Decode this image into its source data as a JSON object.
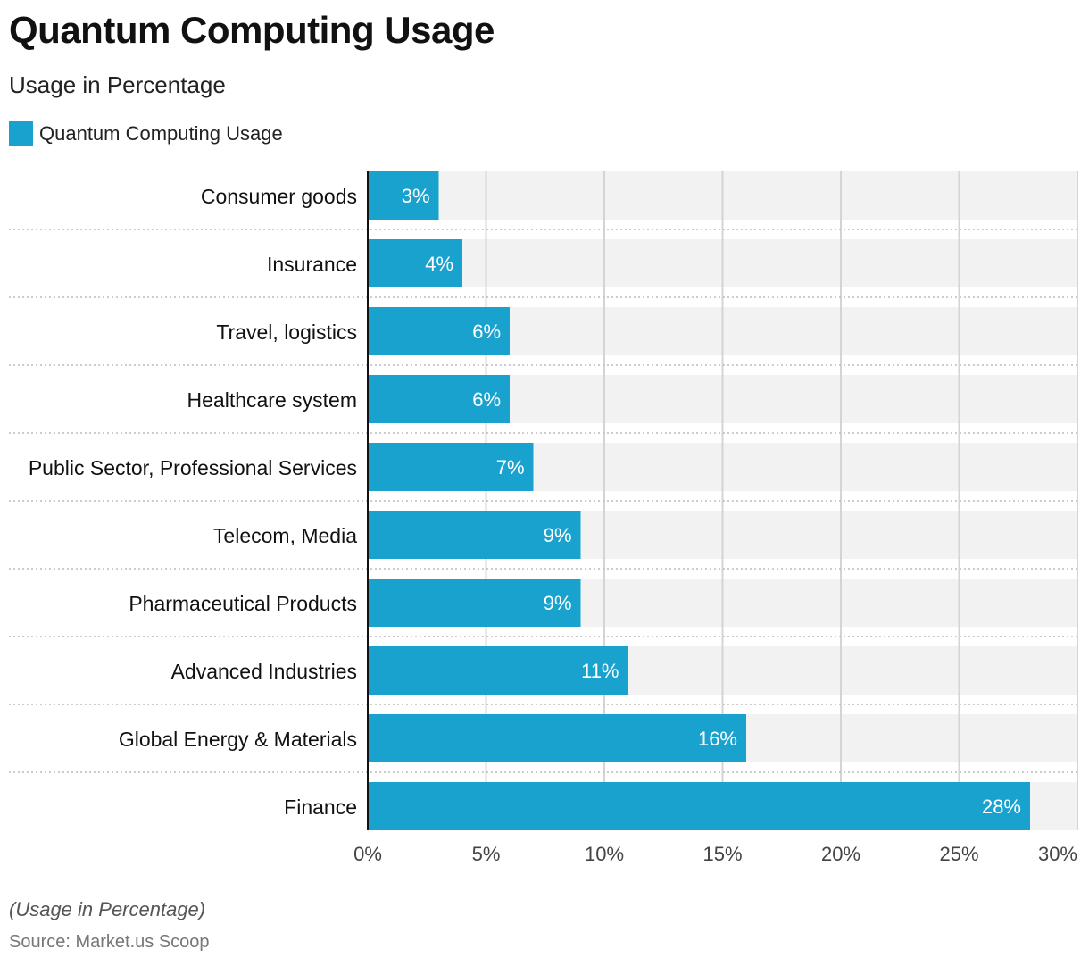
{
  "title": "Quantum Computing Usage",
  "subtitle": "Usage in Percentage",
  "legend": {
    "label": "Quantum Computing Usage",
    "color": "#1aa2cf"
  },
  "note": "(Usage in Percentage)",
  "source": "Source: Market.us Scoop",
  "chart_data": {
    "type": "bar",
    "orientation": "horizontal",
    "categories": [
      "Consumer goods",
      "Insurance",
      "Travel, logistics",
      "Healthcare system",
      "Public Sector, Professional Services",
      "Telecom, Media",
      "Pharmaceutical Products",
      "Advanced Industries",
      "Global Energy & Materials",
      "Finance"
    ],
    "series": [
      {
        "name": "Quantum Computing Usage",
        "values": [
          3,
          4,
          6,
          6,
          7,
          9,
          9,
          11,
          16,
          28
        ],
        "labels": [
          "3%",
          "4%",
          "6%",
          "6%",
          "7%",
          "9%",
          "9%",
          "11%",
          "16%",
          "28%"
        ],
        "color": "#1aa2cf"
      }
    ],
    "xlim": [
      0,
      30
    ],
    "xticks": [
      0,
      5,
      10,
      15,
      20,
      25,
      30
    ],
    "xtick_labels": [
      "0%",
      "5%",
      "10%",
      "15%",
      "20%",
      "25%",
      "30%"
    ],
    "grid": true,
    "legend_position": "top-left",
    "bar_track_color": "#f2f2f2",
    "gridline_color": "#d4d4d4"
  }
}
